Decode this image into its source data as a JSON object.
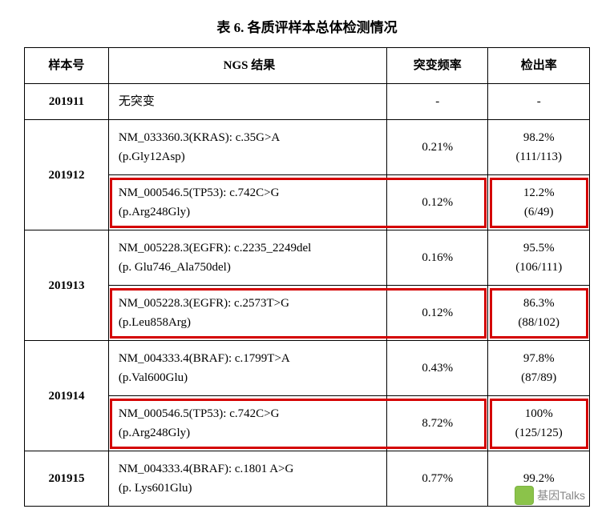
{
  "title": "表 6. 各质评样本总体检测情况",
  "columns": {
    "sample": "样本号",
    "ngs": "NGS 结果",
    "freq": "突变频率",
    "rate": "检出率"
  },
  "rows": [
    {
      "sample": "201911",
      "variants": [
        {
          "ngs1": "无突变",
          "ngs2": "",
          "freq": "-",
          "rate1": "-",
          "rate2": "",
          "highlight": false
        }
      ]
    },
    {
      "sample": "201912",
      "variants": [
        {
          "ngs1": "NM_033360.3(KRAS): c.35G>A",
          "ngs2": "(p.Gly12Asp)",
          "freq": "0.21%",
          "rate1": "98.2%",
          "rate2": "(111/113)",
          "highlight": false
        },
        {
          "ngs1": "NM_000546.5(TP53): c.742C>G",
          "ngs2": "(p.Arg248Gly)",
          "freq": "0.12%",
          "rate1": "12.2%",
          "rate2": "(6/49)",
          "highlight": true
        }
      ]
    },
    {
      "sample": "201913",
      "variants": [
        {
          "ngs1": "NM_005228.3(EGFR): c.2235_2249del",
          "ngs2": "(p. Glu746_Ala750del)",
          "freq": "0.16%",
          "rate1": "95.5%",
          "rate2": "(106/111)",
          "highlight": false
        },
        {
          "ngs1": "NM_005228.3(EGFR): c.2573T>G",
          "ngs2": "(p.Leu858Arg)",
          "freq": "0.12%",
          "rate1": "86.3%",
          "rate2": "(88/102)",
          "highlight": true
        }
      ]
    },
    {
      "sample": "201914",
      "variants": [
        {
          "ngs1": "NM_004333.4(BRAF): c.1799T>A",
          "ngs2": "(p.Val600Glu)",
          "freq": "0.43%",
          "rate1": "97.8%",
          "rate2": "(87/89)",
          "highlight": false
        },
        {
          "ngs1": "NM_000546.5(TP53): c.742C>G",
          "ngs2": "(p.Arg248Gly)",
          "freq": "8.72%",
          "rate1": "100%",
          "rate2": "(125/125)",
          "highlight": true
        }
      ]
    },
    {
      "sample": "201915",
      "variants": [
        {
          "ngs1": "NM_004333.4(BRAF): c.1801 A>G",
          "ngs2": "(p. Lys601Glu)",
          "freq": "0.77%",
          "rate1": "99.2%",
          "rate2": "",
          "highlight": false
        }
      ]
    }
  ],
  "highlight_color": "#d40000",
  "watermark": "基因Talks"
}
